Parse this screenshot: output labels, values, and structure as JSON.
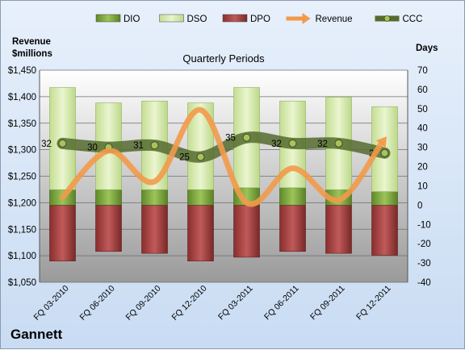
{
  "chart_data": {
    "type": "bar",
    "title": "Quarterly Periods",
    "company": "Gannett",
    "ylabel_left": [
      "Revenue",
      "$millions"
    ],
    "ylabel_right": "Days",
    "categories": [
      "FQ 03-2010",
      "FQ 06-2010",
      "FQ 09-2010",
      "FQ 12-2010",
      "FQ 03-2011",
      "FQ 06-2011",
      "FQ 09-2011",
      "FQ 12-2011"
    ],
    "left_axis": {
      "min": 1050,
      "max": 1450,
      "step": 50,
      "tick_labels": [
        "$1,450",
        "$1,400",
        "$1,350",
        "$1,300",
        "$1,250",
        "$1,200",
        "$1,150",
        "$1,100",
        "$1,050"
      ]
    },
    "right_axis": {
      "min": -40,
      "max": 70,
      "step": 10,
      "tick_labels": [
        "70",
        "60",
        "50",
        "40",
        "30",
        "20",
        "10",
        "0",
        "-10",
        "-20",
        "-30",
        "-40"
      ]
    },
    "grid": true,
    "legend_position": "top",
    "series": [
      {
        "name": "DIO",
        "type": "bar",
        "color": "#7aa33b",
        "values": [
          8,
          8,
          8,
          8,
          9,
          9,
          8,
          7
        ]
      },
      {
        "name": "DSO",
        "type": "bar",
        "color": "#d7eab0",
        "values": [
          53,
          45,
          46,
          45,
          52,
          45,
          48,
          44
        ]
      },
      {
        "name": "DPO",
        "type": "bar",
        "color": "#9e3a3a",
        "values": [
          -29,
          -24,
          -25,
          -29,
          -27,
          -24,
          -25,
          -26
        ]
      },
      {
        "name": "Revenue",
        "type": "line",
        "color": "#f29a4a",
        "values": [
          1210,
          1298,
          1240,
          1375,
          1200,
          1265,
          1205,
          1320
        ]
      },
      {
        "name": "CCC",
        "type": "line",
        "color": "#556b2f",
        "values": [
          32,
          30,
          31,
          25,
          35,
          32,
          32,
          27
        ]
      }
    ]
  }
}
